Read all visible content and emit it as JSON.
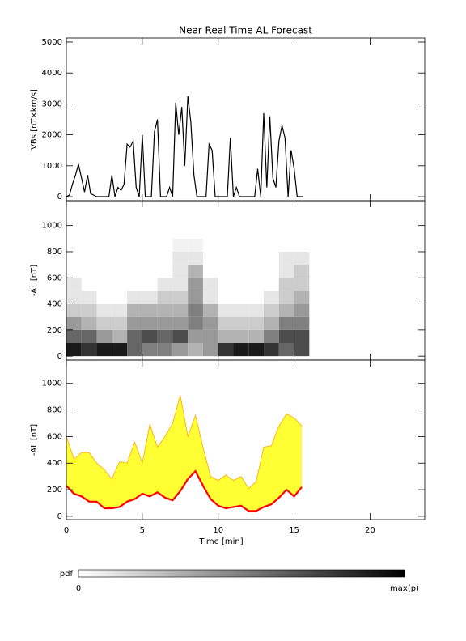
{
  "chart_data": [
    {
      "type": "line",
      "title": "Near Real Time AL Forecast",
      "ylabel": "VBs [nT×km/s]",
      "x": [
        0,
        0.2,
        0.4,
        0.6,
        0.8,
        1,
        1.2,
        1.4,
        1.6,
        1.8,
        2,
        2.2,
        2.4,
        2.6,
        2.8,
        3,
        3.2,
        3.4,
        3.6,
        3.8,
        4,
        4.2,
        4.4,
        4.6,
        4.8,
        5,
        5.2,
        5.4,
        5.6,
        5.8,
        6,
        6.2,
        6.4,
        6.6,
        6.8,
        7,
        7.2,
        7.4,
        7.6,
        7.8,
        8,
        8.2,
        8.4,
        8.6,
        8.8,
        9,
        9.2,
        9.4,
        9.6,
        9.8,
        10,
        10.2,
        10.4,
        10.6,
        10.8,
        11,
        11.2,
        11.4,
        11.6,
        11.8,
        12,
        12.2,
        12.4,
        12.6,
        12.8,
        13,
        13.2,
        13.4,
        13.6,
        13.8,
        14,
        14.2,
        14.4,
        14.6,
        14.8,
        15,
        15.2,
        15.4,
        15.6
      ],
      "values": [
        0,
        50,
        400,
        700,
        1050,
        600,
        150,
        700,
        100,
        50,
        0,
        0,
        0,
        0,
        0,
        700,
        0,
        300,
        200,
        400,
        1700,
        1600,
        1800,
        300,
        0,
        2000,
        0,
        0,
        0,
        2100,
        2500,
        0,
        0,
        0,
        300,
        0,
        3050,
        2000,
        2900,
        1000,
        3250,
        2400,
        700,
        0,
        0,
        0,
        0,
        1700,
        1500,
        0,
        0,
        0,
        0,
        0,
        1900,
        0,
        300,
        0,
        0,
        0,
        0,
        0,
        0,
        900,
        0,
        2700,
        300,
        2600,
        600,
        300,
        1800,
        2300,
        1900,
        0,
        1500,
        900,
        0,
        0,
        0
      ],
      "color": "#000000",
      "xlim": [
        0,
        23.6
      ],
      "xticks": [
        0,
        5,
        10,
        15,
        20
      ],
      "xtick_labels": false,
      "ylim": [
        -130,
        5130
      ],
      "yticks": [
        0,
        1000,
        2000,
        3000,
        4000,
        5000
      ]
    },
    {
      "type": "heatmap",
      "ylabel": "-AL [nT]",
      "x_bins": [
        0,
        1,
        2,
        3,
        4,
        5,
        6,
        7,
        8,
        9,
        10,
        11,
        12,
        13,
        14,
        15,
        16
      ],
      "y_bins": [
        0,
        100,
        200,
        300,
        400,
        500,
        600,
        700,
        800,
        900
      ],
      "z": [
        [
          0.9,
          0.8,
          0.9,
          0.9,
          0.6,
          0.5,
          0.5,
          0.4,
          0.3,
          0.4,
          0.8,
          0.9,
          0.9,
          0.8,
          0.6,
          0.7
        ],
        [
          0.6,
          0.6,
          0.4,
          0.3,
          0.6,
          0.7,
          0.6,
          0.7,
          0.4,
          0.4,
          0.3,
          0.3,
          0.3,
          0.5,
          0.7,
          0.7
        ],
        [
          0.4,
          0.3,
          0.2,
          0.2,
          0.4,
          0.4,
          0.4,
          0.4,
          0.5,
          0.4,
          0.2,
          0.2,
          0.2,
          0.3,
          0.5,
          0.5
        ],
        [
          0.2,
          0.2,
          0.1,
          0.1,
          0.3,
          0.3,
          0.3,
          0.3,
          0.5,
          0.3,
          0.1,
          0.1,
          0.1,
          0.2,
          0.3,
          0.4
        ],
        [
          0.1,
          0.1,
          0,
          0,
          0.1,
          0.1,
          0.2,
          0.2,
          0.4,
          0.1,
          0,
          0,
          0,
          0.1,
          0.2,
          0.3
        ],
        [
          0.1,
          0,
          0,
          0,
          0,
          0,
          0.1,
          0.1,
          0.4,
          0.1,
          0,
          0,
          0,
          0,
          0.2,
          0.2
        ],
        [
          0,
          0,
          0,
          0,
          0,
          0,
          0,
          0.1,
          0.3,
          0,
          0,
          0,
          0,
          0,
          0.1,
          0.2
        ],
        [
          0,
          0,
          0,
          0,
          0,
          0,
          0,
          0.1,
          0.1,
          0,
          0,
          0,
          0,
          0,
          0.1,
          0.1
        ],
        [
          0,
          0,
          0,
          0,
          0,
          0,
          0,
          0.05,
          0.05,
          0,
          0,
          0,
          0,
          0,
          0,
          0
        ]
      ],
      "colormap": [
        "#ffffff",
        "#000000"
      ],
      "colorbar": {
        "label": "pdf",
        "min_label": "0",
        "max_label": "max(p)"
      },
      "xlim": [
        0,
        23.6
      ],
      "xticks": [
        0,
        5,
        10,
        15,
        20
      ],
      "xtick_labels": false,
      "ylim": [
        -30,
        1190
      ],
      "yticks": [
        0,
        200,
        400,
        600,
        800,
        1000
      ]
    },
    {
      "type": "band",
      "ylabel": "-AL [nT]",
      "xlabel": "Time [min]",
      "x": [
        0,
        0.5,
        1,
        1.5,
        2,
        2.5,
        3,
        3.5,
        4,
        4.5,
        5,
        5.5,
        6,
        6.5,
        7,
        7.5,
        8,
        8.5,
        9,
        9.5,
        10,
        10.5,
        11,
        11.5,
        12,
        12.5,
        13,
        13.5,
        14,
        14.5,
        15,
        15.5
      ],
      "series": [
        {
          "color": "#ff0000",
          "values": [
            230,
            170,
            150,
            110,
            110,
            60,
            60,
            70,
            110,
            130,
            170,
            150,
            180,
            140,
            120,
            190,
            280,
            340,
            230,
            130,
            80,
            60,
            70,
            80,
            40,
            40,
            70,
            90,
            140,
            200,
            150,
            220
          ]
        },
        {
          "color": "#ffa500",
          "fill": "#ffff33",
          "values": [
            600,
            430,
            480,
            480,
            400,
            350,
            280,
            410,
            400,
            560,
            400,
            690,
            520,
            600,
            700,
            910,
            600,
            760,
            520,
            300,
            270,
            310,
            270,
            300,
            210,
            260,
            520,
            530,
            680,
            770,
            740,
            680
          ]
        }
      ],
      "xlim": [
        0,
        23.6
      ],
      "xticks": [
        0,
        5,
        10,
        15,
        20
      ],
      "xtick_labels": true,
      "ylim": [
        -25,
        1175
      ],
      "yticks": [
        0,
        200,
        400,
        600,
        800,
        1000
      ]
    }
  ]
}
